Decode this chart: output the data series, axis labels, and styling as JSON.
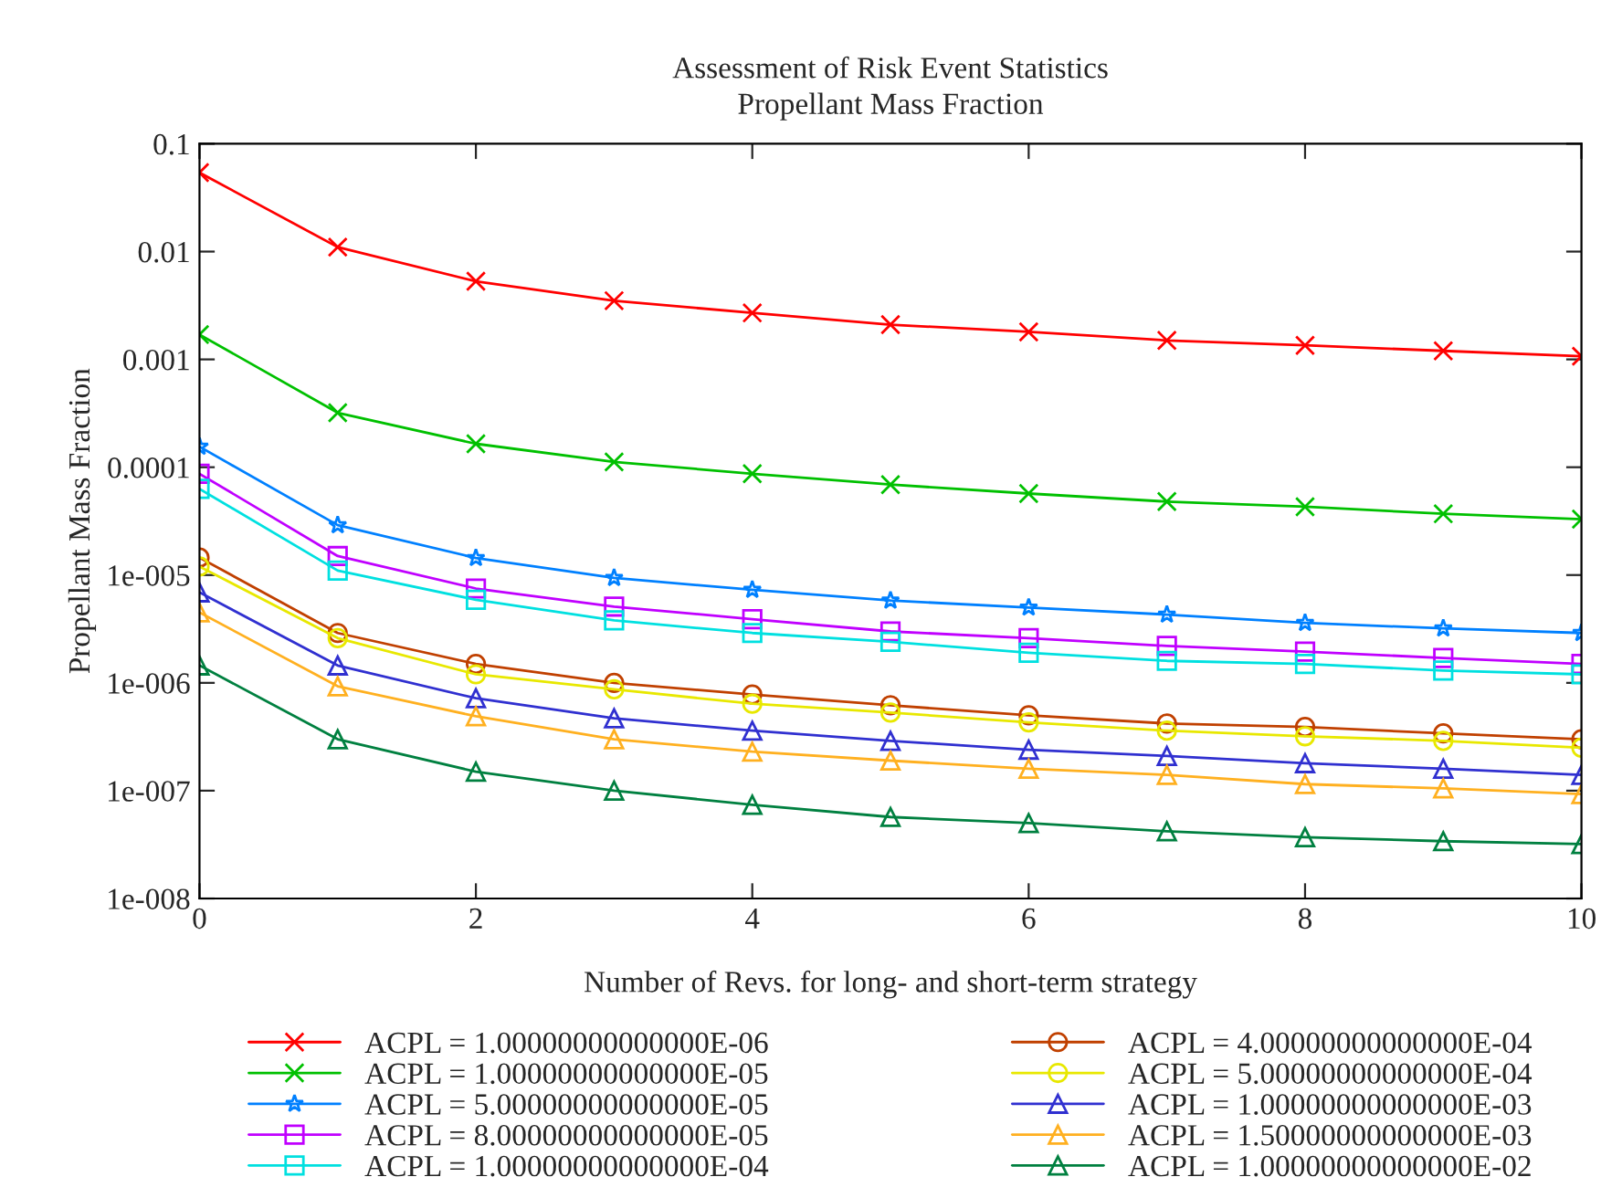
{
  "chart_data": {
    "type": "line",
    "title": "Assessment of Risk Event Statistics",
    "subtitle": "Propellant Mass Fraction",
    "xlabel": "Number of Revs. for long- and short-term strategy",
    "ylabel": "Propellant Mass Fraction",
    "x": [
      0,
      1,
      2,
      3,
      4,
      5,
      6,
      7,
      8,
      9,
      10
    ],
    "log": "y",
    "xlim": [
      0,
      10
    ],
    "xticks": [
      0,
      2,
      4,
      6,
      8,
      10
    ],
    "ylim": [
      1e-08,
      0.1
    ],
    "yticks": [
      {
        "value": 0.1,
        "label": "0.1"
      },
      {
        "value": 0.01,
        "label": "0.01"
      },
      {
        "value": 0.001,
        "label": "0.001"
      },
      {
        "value": 0.0001,
        "label": "0.0001"
      },
      {
        "value": 1e-05,
        "label": "1e-005"
      },
      {
        "value": 1e-06,
        "label": "1e-006"
      },
      {
        "value": 1e-07,
        "label": "1e-007"
      },
      {
        "value": 1e-08,
        "label": "1e-008"
      }
    ],
    "grid": false,
    "legend": "bottom",
    "line_style": "solid",
    "series": [
      {
        "name": "ACPL = 1.00000000000000E-06",
        "color": "#ff0000",
        "marker": "cross",
        "values": [
          0.054,
          0.011,
          0.0053,
          0.0035,
          0.0027,
          0.0021,
          0.0018,
          0.0015,
          0.00135,
          0.0012,
          0.00107
        ]
      },
      {
        "name": "ACPL = 1.00000000000000E-05",
        "color": "#00c000",
        "marker": "cross",
        "values": [
          0.0017,
          0.00032,
          0.000165,
          0.000112,
          8.7e-05,
          6.9e-05,
          5.7e-05,
          4.8e-05,
          4.3e-05,
          3.7e-05,
          3.3e-05
        ]
      },
      {
        "name": "ACPL = 5.00000000000000E-05",
        "color": "#0080ff",
        "marker": "star",
        "values": [
          0.000155,
          2.9e-05,
          1.44e-05,
          9.4e-06,
          7.3e-06,
          5.8e-06,
          5e-06,
          4.3e-06,
          3.6e-06,
          3.2e-06,
          2.9e-06
        ]
      },
      {
        "name": "ACPL = 8.00000000000000E-05",
        "color": "#c000ff",
        "marker": "square",
        "values": [
          8.7e-05,
          1.5e-05,
          7.5e-06,
          5.1e-06,
          3.9e-06,
          3e-06,
          2.6e-06,
          2.2e-06,
          1.95e-06,
          1.7e-06,
          1.5e-06
        ]
      },
      {
        "name": "ACPL = 1.00000000000000E-04",
        "color": "#00e0e0",
        "marker": "square",
        "values": [
          6.3e-05,
          1.1e-05,
          5.9e-06,
          3.8e-06,
          2.9e-06,
          2.4e-06,
          1.9e-06,
          1.6e-06,
          1.5e-06,
          1.3e-06,
          1.2e-06
        ]
      },
      {
        "name": "ACPL = 4.00000000000000E-04",
        "color": "#c04000",
        "marker": "circle",
        "values": [
          1.45e-05,
          2.9e-06,
          1.5e-06,
          1e-06,
          7.8e-07,
          6.2e-07,
          5e-07,
          4.2e-07,
          3.9e-07,
          3.4e-07,
          3e-07
        ]
      },
      {
        "name": "ACPL = 5.00000000000000E-04",
        "color": "#e8e800",
        "marker": "circle",
        "values": [
          1.2e-05,
          2.6e-06,
          1.2e-06,
          8.7e-07,
          6.4e-07,
          5.3e-07,
          4.3e-07,
          3.6e-07,
          3.2e-07,
          2.9e-07,
          2.5e-07
        ]
      },
      {
        "name": "ACPL = 1.00000000000000E-03",
        "color": "#3030d0",
        "marker": "triangle",
        "values": [
          6.9e-06,
          1.45e-06,
          7.2e-07,
          4.7e-07,
          3.6e-07,
          2.9e-07,
          2.4e-07,
          2.1e-07,
          1.8e-07,
          1.6e-07,
          1.4e-07
        ]
      },
      {
        "name": "ACPL = 1.50000000000000E-03",
        "color": "#ffb020",
        "marker": "triangle",
        "values": [
          4.5e-06,
          9.3e-07,
          4.9e-07,
          3e-07,
          2.3e-07,
          1.9e-07,
          1.6e-07,
          1.4e-07,
          1.15e-07,
          1.05e-07,
          9.3e-08
        ]
      },
      {
        "name": "ACPL = 1.00000000000000E-02",
        "color": "#008040",
        "marker": "triangle",
        "values": [
          1.45e-06,
          3e-07,
          1.5e-07,
          1e-07,
          7.4e-08,
          5.7e-08,
          5e-08,
          4.2e-08,
          3.7e-08,
          3.4e-08,
          3.2e-08
        ]
      }
    ]
  }
}
